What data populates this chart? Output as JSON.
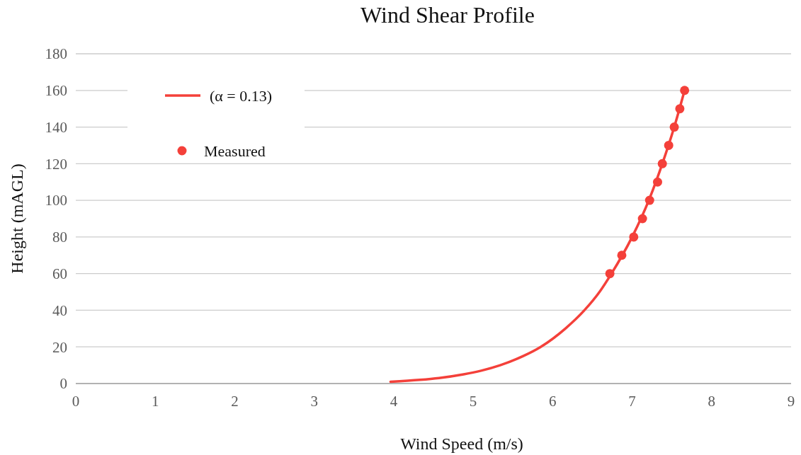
{
  "chart_data": {
    "type": "line",
    "title": "Wind Shear Profile",
    "xlabel": "Wind Speed (m/s)",
    "ylabel": "Height  (mAGL)",
    "xlim": [
      0,
      9
    ],
    "xticks": [
      0,
      1,
      2,
      3,
      4,
      5,
      6,
      7,
      8,
      9
    ],
    "ylim": [
      0,
      180
    ],
    "yticks": [
      0,
      20,
      40,
      60,
      80,
      100,
      120,
      140,
      160,
      180
    ],
    "grid": "y",
    "legend": "top left",
    "series": [
      {
        "name": "(α = 0.13)",
        "type": "line",
        "color": "#f4403a",
        "marker": "none",
        "line_style": "solid",
        "x": [
          3.96,
          4.33,
          4.57,
          4.88,
          5.1,
          5.34,
          5.63,
          5.85,
          6.16,
          6.4,
          6.59,
          6.74,
          7.0,
          7.21,
          7.38,
          7.53,
          7.66
        ],
        "values": [
          1,
          2,
          3,
          5,
          7,
          10,
          15,
          20,
          30,
          40,
          50,
          60,
          80,
          100,
          120,
          140,
          160
        ]
      },
      {
        "name": "Measured",
        "type": "scatter",
        "color": "#f4403a",
        "marker": "circle",
        "x": [
          6.72,
          6.87,
          7.02,
          7.13,
          7.22,
          7.32,
          7.38,
          7.46,
          7.53,
          7.6,
          7.66
        ],
        "values": [
          60,
          70,
          80,
          90,
          100,
          110,
          120,
          130,
          140,
          150,
          160
        ]
      }
    ]
  }
}
